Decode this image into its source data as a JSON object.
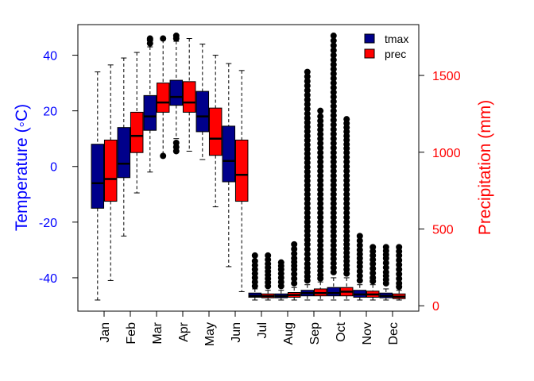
{
  "chart_data": {
    "type": "boxplot",
    "categories": [
      "Jan",
      "Feb",
      "Mar",
      "Apr",
      "May",
      "Jun",
      "Jul",
      "Aug",
      "Sep",
      "Oct",
      "Nov",
      "Dec"
    ],
    "left_axis": {
      "label": "Temperature (◦C)",
      "color": "#0000ff",
      "ylim": [
        -52,
        51
      ],
      "ticks": [
        -40,
        -20,
        0,
        20,
        40
      ],
      "tick_labels": [
        "-40",
        "-20",
        "0",
        "20",
        "40"
      ]
    },
    "right_axis": {
      "label": "Precipitation (mm)",
      "color": "#ff0000",
      "ylim": [
        -35,
        1831
      ],
      "ticks": [
        0,
        500,
        1000,
        1500
      ],
      "tick_labels": [
        "0",
        "500",
        "1000",
        "1500"
      ]
    },
    "legend": {
      "position": "top-right",
      "entries": [
        {
          "label": "tmax",
          "color": "#00008b"
        },
        {
          "label": "prec",
          "color": "#ff0000"
        }
      ]
    },
    "series": [
      {
        "name": "tmax",
        "color": "#00008b",
        "axis": "left",
        "boxes": [
          {
            "month": "Jan",
            "min": -48,
            "q1": -15,
            "median": -6,
            "q3": 8,
            "max": 34,
            "outliers": []
          },
          {
            "month": "Feb",
            "min": -25,
            "q1": -4,
            "median": 1,
            "q3": 14,
            "max": 39,
            "outliers": []
          },
          {
            "month": "Mar",
            "min": -2,
            "q1": 13,
            "median": 18,
            "q3": 25.5,
            "max": 43,
            "outliers": [
              45.5,
              46
            ]
          },
          {
            "month": "Apr",
            "min": 10,
            "q1": 22,
            "median": 25,
            "q3": 31,
            "max": 45,
            "outliers": [
              5.5,
              7,
              8.5,
              46,
              47
            ]
          },
          {
            "month": "May",
            "min": 2.5,
            "q1": 12.5,
            "median": 18,
            "q3": 27,
            "max": 44,
            "outliers": []
          },
          {
            "month": "Jun",
            "min": -36,
            "q1": -5.5,
            "median": 2,
            "q3": 14.5,
            "max": 37,
            "outliers": []
          },
          {
            "month": "Jul",
            "min": -48,
            "q1": -47,
            "median": -46.5,
            "q3": -45.5,
            "max": -44,
            "outliers": [
              -43,
              -40,
              -37,
              -34,
              -32
            ]
          },
          {
            "month": "Aug",
            "min": -48,
            "q1": -47.2,
            "median": -46.6,
            "q3": -45.8,
            "max": -44.5,
            "outliers": [
              -43,
              -40,
              -37,
              -34.5
            ]
          },
          {
            "month": "Sep",
            "min": -48,
            "q1": -46.5,
            "median": -45.5,
            "q3": -44.5,
            "max": -42.5,
            "outliers": [
              -41,
              -35,
              -28,
              -20,
              -10,
              3,
              19,
              34
            ]
          },
          {
            "month": "Oct",
            "min": -48,
            "q1": -46.5,
            "median": -45.5,
            "q3": -43.5,
            "max": -40,
            "outliers": [
              -38,
              -30,
              -20,
              -5,
              10,
              25,
              40,
              47
            ]
          },
          {
            "month": "Nov",
            "min": -48,
            "q1": -47,
            "median": -46,
            "q3": -44.5,
            "max": -42.5,
            "outliers": [
              -41,
              -36,
              -30,
              -25
            ]
          },
          {
            "month": "Dec",
            "min": -48,
            "q1": -47.2,
            "median": -46.5,
            "q3": -45.5,
            "max": -44,
            "outliers": [
              -42,
              -38,
              -33,
              -29
            ]
          }
        ]
      },
      {
        "name": "prec",
        "color": "#ff0000",
        "axis": "left",
        "boxes": [
          {
            "month": "Jan",
            "min": -41,
            "q1": -12.5,
            "median": -4.5,
            "q3": 9.5,
            "max": 36.5,
            "outliers": []
          },
          {
            "month": "Feb",
            "min": -9.5,
            "q1": 5,
            "median": 11,
            "q3": 19.5,
            "max": 41,
            "outliers": []
          },
          {
            "month": "Mar",
            "min": 4,
            "q1": 19.5,
            "median": 23,
            "q3": 30,
            "max": 45.5,
            "outliers": [
              3.8,
              46
            ]
          },
          {
            "month": "Apr",
            "min": 5.5,
            "q1": 19.5,
            "median": 23,
            "q3": 30.5,
            "max": 46,
            "outliers": []
          },
          {
            "month": "May",
            "min": -14.5,
            "q1": 4,
            "median": 10,
            "q3": 21,
            "max": 40,
            "outliers": []
          },
          {
            "month": "Jun",
            "min": -45,
            "q1": -12.5,
            "median": -3,
            "q3": 9.5,
            "max": 34.5,
            "outliers": []
          },
          {
            "month": "Jul",
            "min": -48,
            "q1": -47.2,
            "median": -46.6,
            "q3": -45.8,
            "max": -44.5,
            "outliers": [
              -43,
              -39,
              -35,
              -32
            ]
          },
          {
            "month": "Aug",
            "min": -48,
            "q1": -47,
            "median": -46.2,
            "q3": -45.3,
            "max": -43.5,
            "outliers": [
              -42,
              -37,
              -33,
              -28
            ]
          },
          {
            "month": "Sep",
            "min": -48,
            "q1": -46.5,
            "median": -45.5,
            "q3": -44,
            "max": -41.5,
            "outliers": [
              -39,
              -30,
              -20,
              -5,
              10,
              18,
              20
            ]
          },
          {
            "month": "Oct",
            "min": -48,
            "q1": -46.5,
            "median": -45,
            "q3": -43.5,
            "max": -40,
            "outliers": [
              -37,
              -25,
              -10,
              5,
              17
            ]
          },
          {
            "month": "Nov",
            "min": -48,
            "q1": -47,
            "median": -46,
            "q3": -44.8,
            "max": -42.5,
            "outliers": [
              -40,
              -35,
              -29
            ]
          },
          {
            "month": "Dec",
            "min": -48,
            "q1": -47.5,
            "median": -46.8,
            "q3": -45.8,
            "max": -44.5,
            "outliers": [
              -42,
              -37,
              -32,
              -29
            ]
          }
        ]
      }
    ]
  }
}
